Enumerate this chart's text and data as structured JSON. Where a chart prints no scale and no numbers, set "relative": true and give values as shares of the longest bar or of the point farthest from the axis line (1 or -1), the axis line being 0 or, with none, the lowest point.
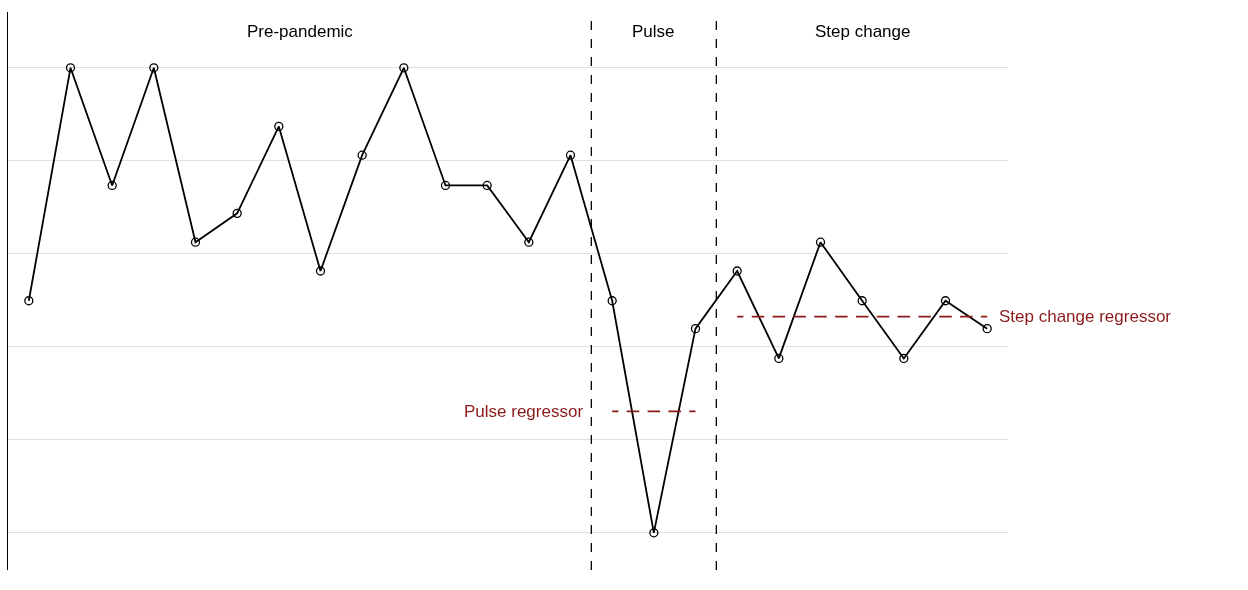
{
  "chart_data": {
    "type": "line",
    "relative": true,
    "categories": [
      null,
      null,
      null,
      null,
      null,
      null,
      null,
      null,
      null,
      null,
      null,
      null,
      null,
      null,
      null,
      null,
      null,
      null,
      null,
      null,
      null,
      null,
      null,
      null
    ],
    "series": [
      {
        "color": "#000000",
        "values": [
          0.499,
          1,
          0.747,
          1,
          0.625,
          0.687,
          0.874,
          0.563,
          0.812,
          1,
          0.747,
          0.747,
          0.625,
          0.812,
          0.499,
          0,
          0.439,
          0.563,
          0.375,
          0.625,
          0.499,
          0.375,
          0.499,
          0.439
        ]
      },
      {
        "name": "Pulse regressor",
        "color": "#8b1a1a",
        "values": [
          null,
          null,
          null,
          null,
          null,
          null,
          null,
          null,
          null,
          null,
          null,
          null,
          null,
          null,
          0.261,
          0.261,
          0.261,
          null,
          null,
          null,
          null,
          null,
          null,
          null
        ],
        "line_style": "dashed",
        "marker": "none"
      },
      {
        "name": "Step change regressor",
        "color": "#8b1a1a",
        "values": [
          null,
          null,
          null,
          null,
          null,
          null,
          null,
          null,
          null,
          null,
          null,
          null,
          null,
          null,
          null,
          null,
          null,
          0.465,
          0.465,
          0.465,
          0.465,
          0.465,
          0.465,
          0.465
        ],
        "line_style": "dashed",
        "marker": "none"
      }
    ],
    "annotations": [
      "Pre-pandemic",
      "Pulse",
      "Step change"
    ],
    "marker": "circle",
    "line_style": "solid",
    "grid": "y",
    "legend": false
  }
}
